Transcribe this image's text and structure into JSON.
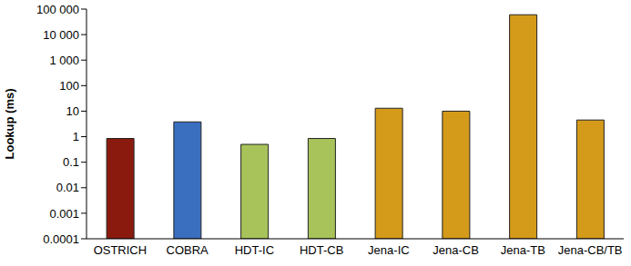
{
  "chart_data": {
    "type": "bar",
    "y_label": "Lookup (ms)",
    "categories": [
      "OSTRICH",
      "COBRA",
      "HDT-IC",
      "HDT-CB",
      "Jena-IC",
      "Jena-CB",
      "Jena-TB",
      "Jena-CB/TB"
    ],
    "values": [
      0.85,
      3.8,
      0.5,
      0.85,
      13,
      10,
      60000,
      4.5
    ],
    "colors": [
      "#8b1a0e",
      "#3a6fc0",
      "#a7c35a",
      "#a7c35a",
      "#d49a1a",
      "#d49a1a",
      "#d49a1a",
      "#d49a1a"
    ],
    "log": "y",
    "ylim": [
      0.0001,
      100000
    ],
    "yticks": [
      0.0001,
      0.001,
      0.01,
      0.1,
      1,
      10,
      100,
      {
        "value": 1000,
        "label": "1 000"
      },
      {
        "value": 10000,
        "label": "10 000"
      },
      {
        "value": 100000,
        "label": "100 000"
      }
    ],
    "grid": false
  }
}
